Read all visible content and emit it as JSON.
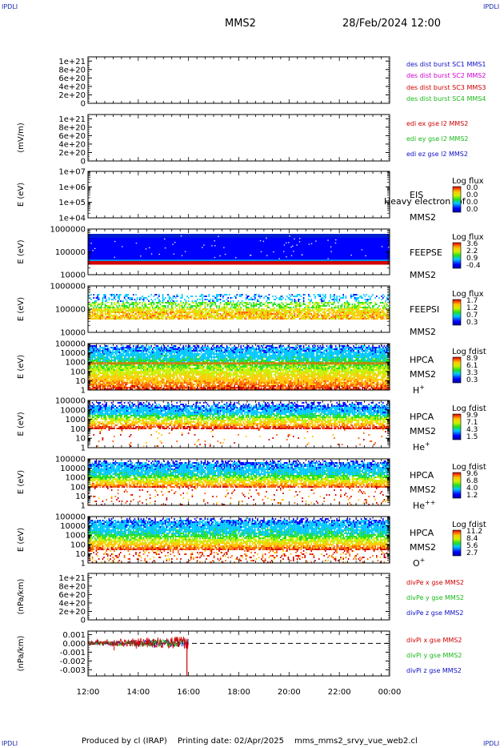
{
  "corner_label": "IPDLI",
  "header": {
    "spacecraft": "MMS2",
    "datetime": "28/Feb/2024 12:00"
  },
  "footer": {
    "credit": "Produced by cl (IRAP)",
    "print_date": "Printing date: 02/Apr/2025",
    "file": "mms_mms2_srvy_vue_web2.cl"
  },
  "colors": {
    "red": "#d00000",
    "green": "#1ab81a",
    "blue": "#1010c8",
    "magenta": "#d000d0",
    "bg": "#ffffff"
  },
  "x_axis": {
    "ticks": [
      "12:00",
      "14:00",
      "16:00",
      "18:00",
      "20:00",
      "22:00",
      "00:00"
    ]
  },
  "chart_data": [
    {
      "type": "line",
      "id": "dist",
      "ylabel": "",
      "yticks": [
        "1e+21",
        "8e+20",
        "6e+20",
        "4e+20",
        "2e+20",
        "0"
      ],
      "ylim": [
        0,
        1.1e+21
      ],
      "series": [
        {
          "name": "des dist burst SC1 MMS1",
          "color": "#1010c8",
          "values": []
        },
        {
          "name": "des dist burst SC2 MMS2",
          "color": "#d000d0",
          "values": []
        },
        {
          "name": "des dist burst SC3 MMS3",
          "color": "#d00000",
          "values": []
        },
        {
          "name": "des dist burst SC4 MMS4",
          "color": "#1ab81a",
          "values": []
        }
      ],
      "dashed_zero": true
    },
    {
      "type": "line",
      "id": "edi",
      "ylabel": "(mV/m)",
      "yticks": [
        "1e+21",
        "8e+20",
        "6e+20",
        "4e+20",
        "2e+20",
        "0"
      ],
      "ylim": [
        0,
        1.1e+21
      ],
      "series": [
        {
          "name": "edi ex gse l2 MMS2",
          "color": "#d00000",
          "values": []
        },
        {
          "name": "edi ey gse l2 MMS2",
          "color": "#1ab81a",
          "values": []
        },
        {
          "name": "edi ez gse l2 MMS2",
          "color": "#1010c8",
          "values": []
        }
      ],
      "dashed_zero": true
    },
    {
      "type": "heatmap",
      "id": "eis",
      "ylabel": "E (eV)",
      "yticks": [
        "1e+07",
        "1e+06",
        "1e+05",
        "1e+04"
      ],
      "labels": [
        "EIS",
        "MMS2"
      ],
      "overlay_text": "Heavy electron tof",
      "colorbar": {
        "title": "Log flux",
        "ticks": [
          "0.0",
          "0.0",
          "0.0",
          "0.0"
        ]
      },
      "profile": "none"
    },
    {
      "type": "heatmap",
      "id": "feeps_e",
      "ylabel": "E (eV)",
      "yticks": [
        "1000000",
        "100000",
        "10000"
      ],
      "labels": [
        "FEEPSE",
        "MMS2"
      ],
      "colorbar": {
        "title": "Log flux",
        "ticks": [
          "3.6",
          "2.2",
          "0.9",
          "-0.4"
        ]
      },
      "profile": "feepse"
    },
    {
      "type": "heatmap",
      "id": "feeps_i",
      "ylabel": "E (eV)",
      "yticks": [
        "1000000",
        "100000",
        "10000"
      ],
      "labels": [
        "FEEPSI",
        "MMS2"
      ],
      "colorbar": {
        "title": "Log flux",
        "ticks": [
          "1.7",
          "1.2",
          "0.7",
          "0.3"
        ]
      },
      "profile": "feepsi"
    },
    {
      "type": "heatmap",
      "id": "hpca_h",
      "ylabel": "E (eV)",
      "yticks": [
        "100000",
        "10000",
        "1000",
        "100",
        "10",
        "1"
      ],
      "labels": [
        "HPCA",
        "MMS2"
      ],
      "species": "H",
      "species_sup": "+",
      "colorbar": {
        "title": "Log fdist",
        "ticks": [
          "8.9",
          "6.1",
          "3.3",
          "0.3"
        ]
      },
      "profile": "hplus"
    },
    {
      "type": "heatmap",
      "id": "hpca_he",
      "ylabel": "E (eV)",
      "yticks": [
        "100000",
        "10000",
        "1000",
        "100",
        "10",
        "1"
      ],
      "labels": [
        "HPCA",
        "MMS2"
      ],
      "species": "He",
      "species_sup": "+",
      "colorbar": {
        "title": "Log fdist",
        "ticks": [
          "9.9",
          "7.1",
          "4.3",
          "1.5"
        ]
      },
      "profile": "heplus"
    },
    {
      "type": "heatmap",
      "id": "hpca_hepp",
      "ylabel": "E (eV)",
      "yticks": [
        "100000",
        "10000",
        "1000",
        "100",
        "10",
        "1"
      ],
      "labels": [
        "HPCA",
        "MMS2"
      ],
      "species": "He",
      "species_sup": "++",
      "colorbar": {
        "title": "Log fdist",
        "ticks": [
          "9.6",
          "6.8",
          "4.0",
          "1.2"
        ]
      },
      "profile": "hepp"
    },
    {
      "type": "heatmap",
      "id": "hpca_o",
      "ylabel": "E (eV)",
      "yticks": [
        "100000",
        "10000",
        "1000",
        "100",
        "10",
        "1"
      ],
      "labels": [
        "HPCA",
        "MMS2"
      ],
      "species": "O",
      "species_sup": "+",
      "colorbar": {
        "title": "Log fdist",
        "ticks": [
          "11.2",
          "8.4",
          "5.6",
          "2.7"
        ]
      },
      "profile": "oplus"
    },
    {
      "type": "line",
      "id": "divpe",
      "ylabel": "(nPa/km)",
      "yticks": [
        "1e+21",
        "8e+20",
        "6e+20",
        "4e+20",
        "2e+20",
        "0"
      ],
      "ylim": [
        0,
        1.1e+21
      ],
      "series": [
        {
          "name": "divPe x gse MMS2",
          "color": "#d00000",
          "values": []
        },
        {
          "name": "divPe y gse MMS2",
          "color": "#1ab81a",
          "values": []
        },
        {
          "name": "divPe z gse MMS2",
          "color": "#1010c8",
          "values": []
        }
      ],
      "dashed_zero": true
    },
    {
      "type": "line",
      "id": "divpi",
      "ylabel": "(nPa/km)",
      "yticks": [
        "0.001",
        "0.000",
        "-0.001",
        "-0.002",
        "-0.003"
      ],
      "ylim": [
        -0.0037,
        0.0014
      ],
      "series": [
        {
          "name": "divPi x gse MMS2",
          "color": "#d00000",
          "values": []
        },
        {
          "name": "divPi y gse MMS2",
          "color": "#1ab81a",
          "values": []
        },
        {
          "name": "divPi z gse MMS2",
          "color": "#1010c8",
          "values": []
        }
      ],
      "dashed_zero": true,
      "data_end": "16:00",
      "min_spike": -0.0037
    }
  ]
}
